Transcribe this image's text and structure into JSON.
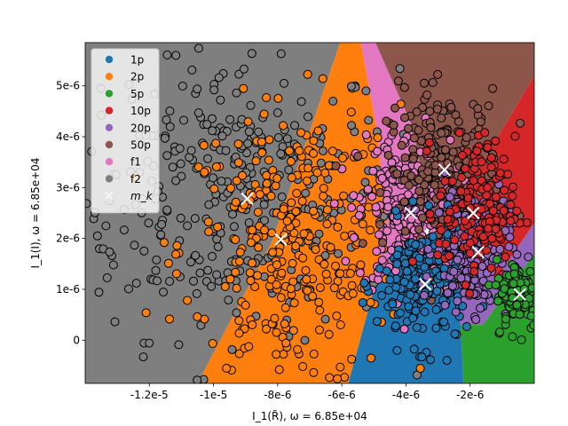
{
  "chart_data": {
    "type": "scatter",
    "title": "",
    "xlabel": "I_1(R̃), ω = 6.85e+04",
    "ylabel": "I_1(I), ω = 6.85e+04",
    "xlim": [
      -1.4e-05,
      0.0
    ],
    "ylim": [
      -8.5e-07,
      5.85e-06
    ],
    "x_ticks": [
      {
        "value": -1.2e-05,
        "label": "-1.2e-5"
      },
      {
        "value": -1e-05,
        "label": "-1e-5"
      },
      {
        "value": -8e-06,
        "label": "-8e-6"
      },
      {
        "value": -6e-06,
        "label": "-6e-6"
      },
      {
        "value": -4e-06,
        "label": "-4e-6"
      },
      {
        "value": -2e-06,
        "label": "-2e-6"
      }
    ],
    "y_ticks": [
      {
        "value": 0,
        "label": "0"
      },
      {
        "value": 1e-06,
        "label": "1e-6"
      },
      {
        "value": 2e-06,
        "label": "2e-6"
      },
      {
        "value": 3e-06,
        "label": "3e-6"
      },
      {
        "value": 4e-06,
        "label": "4e-6"
      },
      {
        "value": 5e-06,
        "label": "5e-6"
      }
    ],
    "grid": false,
    "legend_position": "top-left",
    "series": [
      {
        "name": "1p",
        "color": "#1f77b4"
      },
      {
        "name": "2p",
        "color": "#ff7f0e"
      },
      {
        "name": "5p",
        "color": "#2ca02c"
      },
      {
        "name": "10p",
        "color": "#d62728"
      },
      {
        "name": "20p",
        "color": "#9467bd"
      },
      {
        "name": "50p",
        "color": "#8c564b"
      },
      {
        "name": "f1",
        "color": "#e377c2"
      },
      {
        "name": "f2",
        "color": "#7f7f7f"
      }
    ],
    "centroid_legend": "m_k",
    "centroids": [
      {
        "class": "f2",
        "x": -8.95e-06,
        "y": 2.78e-06
      },
      {
        "class": "2p",
        "x": -7.9e-06,
        "y": 1.98e-06
      },
      {
        "class": "f1",
        "x": -3.85e-06,
        "y": 2.5e-06
      },
      {
        "class": "50p",
        "x": -2.8e-06,
        "y": 3.35e-06
      },
      {
        "class": "20p",
        "x": -1.9e-06,
        "y": 2.5e-06
      },
      {
        "class": "10p",
        "x": -1.75e-06,
        "y": 1.73e-06
      },
      {
        "class": "1p",
        "x": -3.4e-06,
        "y": 1.1e-06
      },
      {
        "class": "5p",
        "x": -4.5e-07,
        "y": 9e-07
      }
    ],
    "clusters": [
      {
        "class": "f2",
        "center": [
          -9.5e-06,
          2.9e-06
        ],
        "spread": [
          2.6e-06,
          1.4e-06
        ],
        "count": 340
      },
      {
        "class": "2p",
        "center": [
          -7.6e-06,
          1.8e-06
        ],
        "spread": [
          1.7e-06,
          1.4e-06
        ],
        "count": 300
      },
      {
        "class": "f1",
        "center": [
          -3.9e-06,
          2.5e-06
        ],
        "spread": [
          8e-07,
          8e-07
        ],
        "count": 260
      },
      {
        "class": "50p",
        "center": [
          -2.8e-06,
          3.3e-06
        ],
        "spread": [
          9e-07,
          8e-07
        ],
        "count": 240
      },
      {
        "class": "1p",
        "center": [
          -3.5e-06,
          1.1e-06
        ],
        "spread": [
          7e-07,
          6e-07
        ],
        "count": 200
      },
      {
        "class": "20p",
        "center": [
          -1.9e-06,
          1.8e-06
        ],
        "spread": [
          6e-07,
          6e-07
        ],
        "count": 190
      },
      {
        "class": "10p",
        "center": [
          -1.8e-06,
          2.6e-06
        ],
        "spread": [
          6e-07,
          7e-07
        ],
        "count": 150
      },
      {
        "class": "5p",
        "center": [
          -5e-07,
          9e-07
        ],
        "spread": [
          3.5e-07,
          3.5e-07
        ],
        "count": 110
      }
    ],
    "regions": [
      {
        "class": "f2",
        "polygon": [
          [
            -1.4e-05,
            5.85e-06
          ],
          [
            -6.05e-06,
            5.85e-06
          ],
          [
            -8.2e-06,
            1.9e-06
          ],
          [
            -1.05e-05,
            -8.5e-07
          ],
          [
            -1.4e-05,
            -8.5e-07
          ]
        ]
      },
      {
        "class": "2p",
        "polygon": [
          [
            -6.05e-06,
            5.85e-06
          ],
          [
            -5.4e-06,
            5.85e-06
          ],
          [
            -4.9e-06,
            4.1e-06
          ],
          [
            -4.6e-06,
            2.3e-06
          ],
          [
            -5e-06,
            1e-06
          ],
          [
            -5.8e-06,
            -8.5e-07
          ],
          [
            -1.05e-05,
            -8.5e-07
          ],
          [
            -8.2e-06,
            1.9e-06
          ]
        ]
      },
      {
        "class": "f1",
        "polygon": [
          [
            -5.4e-06,
            5.85e-06
          ],
          [
            -4.95e-06,
            5.85e-06
          ],
          [
            -3.8e-06,
            4.2e-06
          ],
          [
            -3.2e-06,
            2.3e-06
          ],
          [
            -4e-06,
            1.75e-06
          ],
          [
            -5e-06,
            1e-06
          ],
          [
            -4.6e-06,
            2.3e-06
          ],
          [
            -4.9e-06,
            4.1e-06
          ]
        ]
      },
      {
        "class": "1p",
        "polygon": [
          [
            -5e-06,
            1e-06
          ],
          [
            -4e-06,
            1.75e-06
          ],
          [
            -3.2e-06,
            2.1e-06
          ],
          [
            -2.7e-06,
            1.6e-06
          ],
          [
            -2.3e-06,
            3e-07
          ],
          [
            -2.2e-06,
            -8.5e-07
          ],
          [
            -5.8e-06,
            -8.5e-07
          ]
        ]
      },
      {
        "class": "50p",
        "polygon": [
          [
            -4.95e-06,
            5.85e-06
          ],
          [
            0,
            5.85e-06
          ],
          [
            0,
            5.2e-06
          ],
          [
            -1.6e-06,
            3.5e-06
          ],
          [
            -2.5e-06,
            2.9e-06
          ],
          [
            -3.2e-06,
            2.3e-06
          ],
          [
            -3.8e-06,
            4.2e-06
          ]
        ]
      },
      {
        "class": "10p",
        "polygon": [
          [
            0,
            5.2e-06
          ],
          [
            0,
            2.3e-06
          ],
          [
            -1.2e-06,
            1.2e-06
          ],
          [
            -2.1e-06,
            1.75e-06
          ],
          [
            -2.5e-06,
            2.9e-06
          ],
          [
            -1.6e-06,
            3.5e-06
          ]
        ]
      },
      {
        "class": "20p",
        "polygon": [
          [
            -3.2e-06,
            2.3e-06
          ],
          [
            -2.5e-06,
            2.9e-06
          ],
          [
            -2.1e-06,
            1.75e-06
          ],
          [
            -1.2e-06,
            1.2e-06
          ],
          [
            0,
            2.3e-06
          ],
          [
            0,
            1.7e-06
          ],
          [
            -1.6e-06,
            3e-07
          ],
          [
            -2.3e-06,
            3e-07
          ],
          [
            -2.7e-06,
            1.6e-06
          ]
        ]
      },
      {
        "class": "5p",
        "polygon": [
          [
            -2.3e-06,
            3e-07
          ],
          [
            -1.6e-06,
            3e-07
          ],
          [
            0,
            1.7e-06
          ],
          [
            0,
            -8.5e-07
          ],
          [
            -2.2e-06,
            -8.5e-07
          ]
        ]
      }
    ]
  }
}
